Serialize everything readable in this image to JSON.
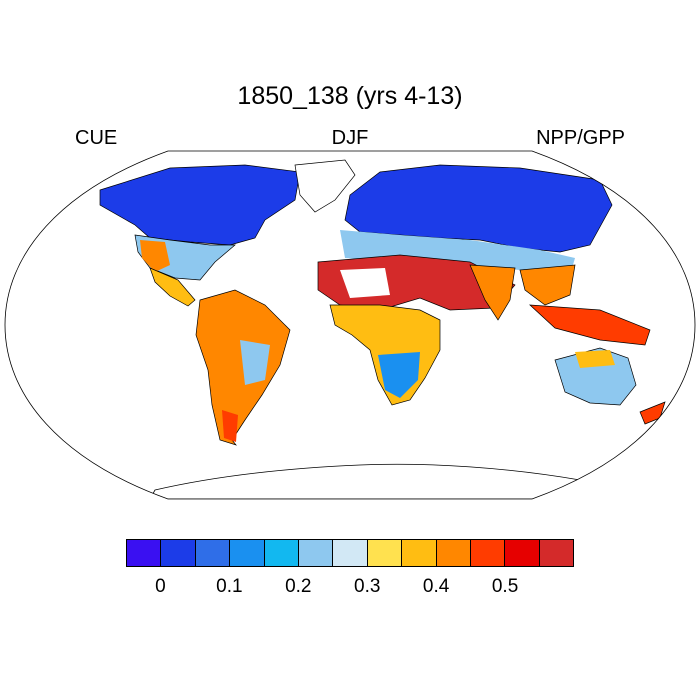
{
  "title": "1850_138 (yrs 4-13)",
  "left_label": "CUE",
  "center_label": "DJF",
  "right_label": "NPP/GPP",
  "colorbar": {
    "colors": [
      "#3a10f2",
      "#1c3ce8",
      "#2f6ee8",
      "#1a90f0",
      "#12b8f0",
      "#8ec8ef",
      "#d2e8f5",
      "#ffe14f",
      "#ffbd12",
      "#ff8700",
      "#ff3c00",
      "#e60000",
      "#d42a2a"
    ],
    "tick_labels": [
      "0",
      "0.1",
      "0.2",
      "0.3",
      "0.4",
      "0.5"
    ]
  },
  "colors": {
    "land_outline": "#000000",
    "frame": "#000000"
  }
}
